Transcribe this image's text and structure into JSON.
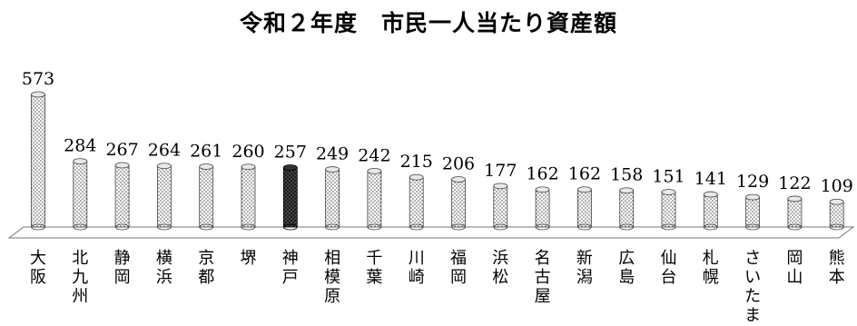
{
  "chart_data": {
    "type": "bar",
    "title": "令和２年度　市民一人当たり資産額",
    "categories": [
      "大阪",
      "北九州",
      "静岡",
      "横浜",
      "京都",
      "堺",
      "神戸",
      "相模原",
      "千葉",
      "川崎",
      "福岡",
      "浜松",
      "名古屋",
      "新潟",
      "広島",
      "仙台",
      "札幌",
      "さいたま",
      "岡山",
      "熊本"
    ],
    "values": [
      573,
      284,
      267,
      264,
      261,
      260,
      257,
      249,
      242,
      215,
      206,
      177,
      162,
      162,
      158,
      151,
      141,
      129,
      122,
      109
    ],
    "highlight_category": "神戸",
    "colors": {
      "pattern_dot": "#555555",
      "pattern_bg": "#ffffff",
      "highlight": "#1a1a1a",
      "axis": "#777777"
    },
    "xlabel": "",
    "ylabel": "",
    "grid": false,
    "legend": "none"
  }
}
